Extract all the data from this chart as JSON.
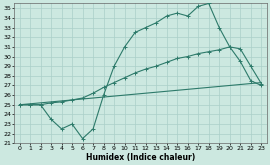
{
  "xlabel": "Humidex (Indice chaleur)",
  "ylabel": "",
  "bg_color": "#cce8e0",
  "grid_color": "#aacfc8",
  "line_color": "#2d7a6a",
  "xlim": [
    -0.5,
    23.5
  ],
  "ylim": [
    21,
    35.5
  ],
  "xticks": [
    0,
    1,
    2,
    3,
    4,
    5,
    6,
    7,
    8,
    9,
    10,
    11,
    12,
    13,
    14,
    15,
    16,
    17,
    18,
    19,
    20,
    21,
    22,
    23
  ],
  "yticks": [
    21,
    22,
    23,
    24,
    25,
    26,
    27,
    28,
    29,
    30,
    31,
    32,
    33,
    34,
    35
  ],
  "line1_x": [
    0,
    1,
    2,
    3,
    4,
    5,
    6,
    7,
    8,
    9,
    10,
    11,
    12,
    13,
    14,
    15,
    16,
    17,
    18,
    19,
    20,
    21,
    22,
    23
  ],
  "line1_y": [
    25.0,
    25.0,
    25.0,
    23.5,
    22.5,
    23.0,
    21.5,
    22.5,
    26.0,
    29.0,
    31.0,
    32.5,
    33.0,
    33.5,
    34.2,
    34.5,
    34.2,
    35.2,
    35.5,
    33.0,
    31.0,
    29.5,
    27.5,
    27.0
  ],
  "line2_x": [
    0,
    1,
    2,
    3,
    4,
    5,
    6,
    7,
    8,
    9,
    10,
    11,
    12,
    13,
    14,
    15,
    16,
    17,
    18,
    19,
    20,
    21,
    22,
    23
  ],
  "line2_y": [
    25.0,
    25.0,
    25.0,
    25.2,
    25.3,
    25.5,
    25.7,
    26.2,
    26.8,
    27.3,
    27.8,
    28.3,
    28.7,
    29.0,
    29.4,
    29.8,
    30.0,
    30.3,
    30.5,
    30.7,
    31.0,
    30.8,
    29.0,
    27.2
  ],
  "line3_x": [
    0,
    1,
    2,
    3,
    4,
    5,
    6,
    7,
    8,
    9,
    10,
    11,
    12,
    13,
    14,
    15,
    16,
    17,
    18,
    19,
    20,
    21,
    22,
    23
  ],
  "line3_y": [
    25.0,
    25.1,
    25.2,
    25.3,
    25.4,
    25.5,
    25.6,
    25.7,
    25.8,
    25.9,
    26.0,
    26.1,
    26.2,
    26.3,
    26.4,
    26.5,
    26.6,
    26.7,
    26.8,
    26.9,
    27.0,
    27.1,
    27.2,
    27.3
  ]
}
